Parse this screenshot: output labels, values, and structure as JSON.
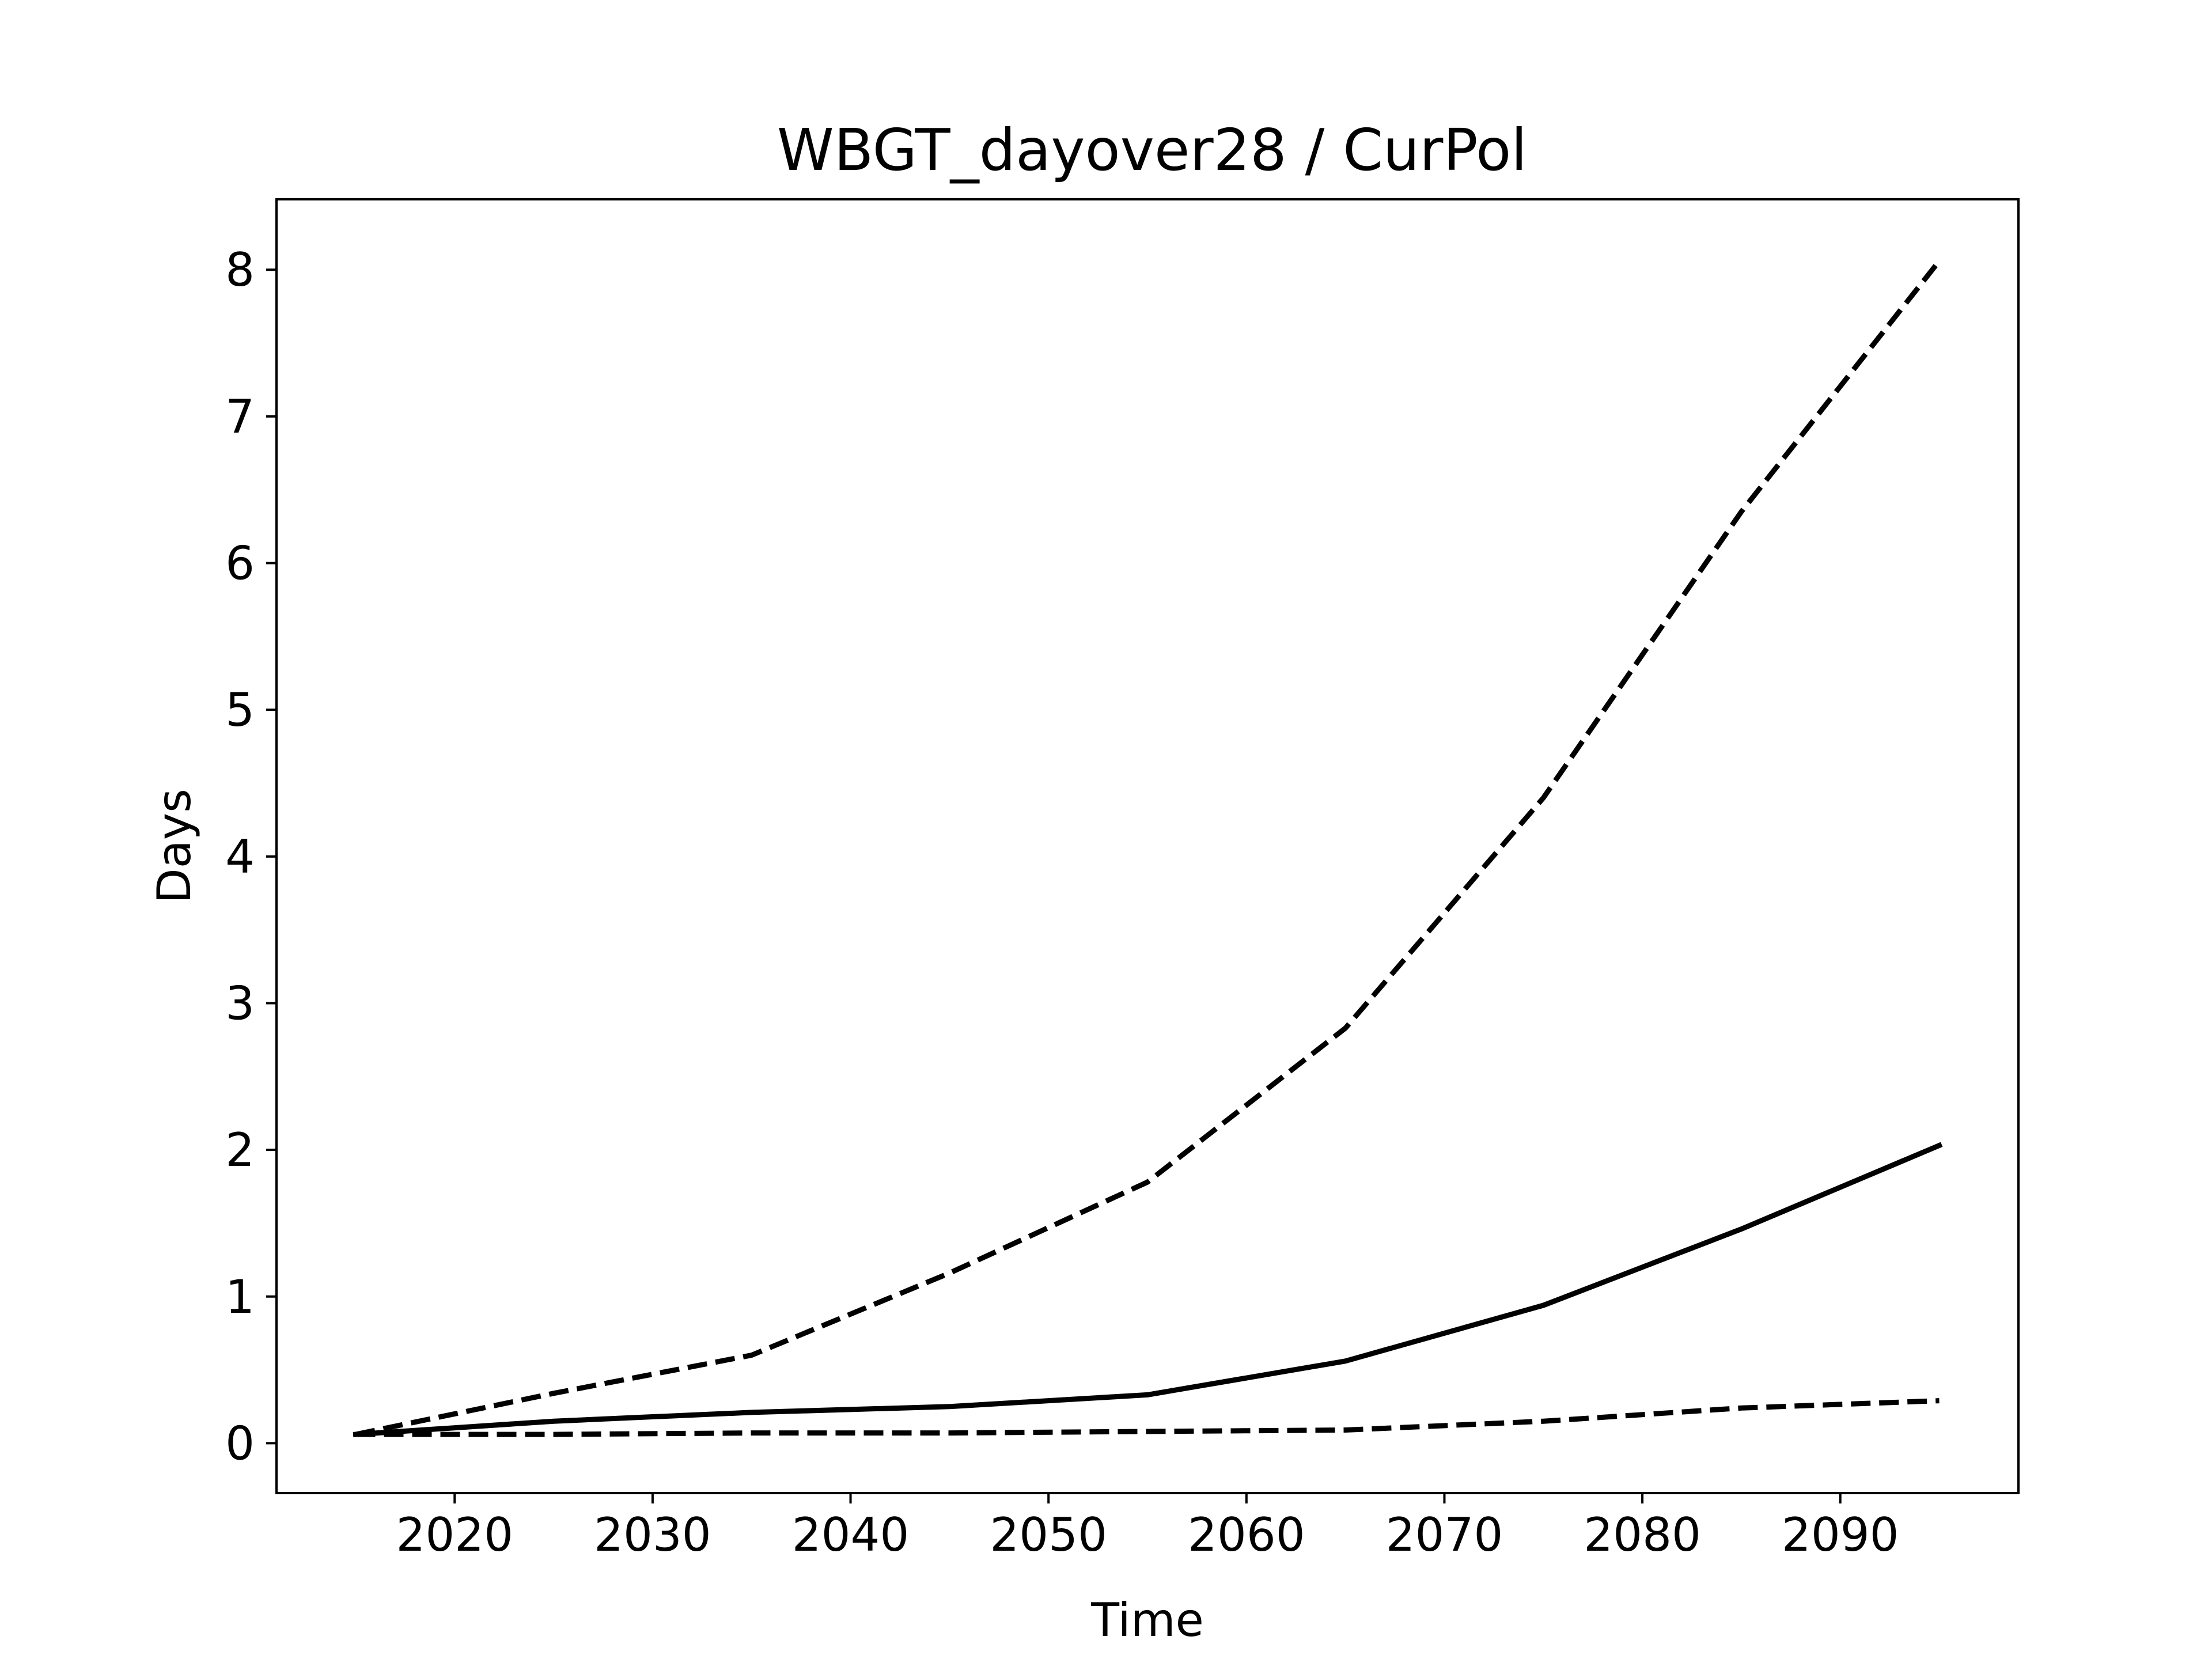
{
  "chart_data": {
    "type": "line",
    "title": "WBGT_dayover28 / CurPol",
    "xlabel": "Time",
    "ylabel": "Days",
    "xlim": [
      2011.0,
      2099.0
    ],
    "ylim": [
      -0.34,
      8.48
    ],
    "x_ticks": [
      2020,
      2030,
      2040,
      2050,
      2060,
      2070,
      2080,
      2090
    ],
    "y_ticks": [
      0,
      1,
      2,
      3,
      4,
      5,
      6,
      7,
      8
    ],
    "grid": false,
    "legend": "none",
    "x": [
      2015,
      2025,
      2035,
      2045,
      2055,
      2065,
      2075,
      2085,
      2095
    ],
    "series": [
      {
        "style": "dashed",
        "color": "#000000",
        "values": [
          0.06,
          0.34,
          0.6,
          1.16,
          1.78,
          2.83,
          4.4,
          6.35,
          8.06
        ]
      },
      {
        "style": "solid",
        "color": "#000000",
        "values": [
          0.06,
          0.15,
          0.21,
          0.25,
          0.33,
          0.56,
          0.94,
          1.46,
          2.03
        ]
      },
      {
        "style": "dashed",
        "color": "#000000",
        "values": [
          0.06,
          0.06,
          0.07,
          0.07,
          0.08,
          0.09,
          0.15,
          0.24,
          0.29
        ]
      }
    ]
  }
}
